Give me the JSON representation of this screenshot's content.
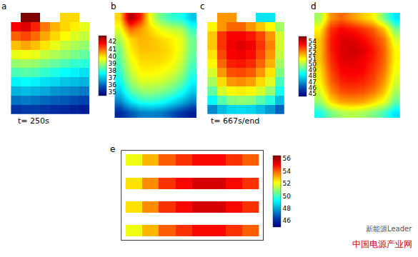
{
  "chart_data": [
    {
      "type": "heatmap",
      "label": "a",
      "annotation": "t= 250s",
      "tick_labels": false,
      "zlim": [
        34.5,
        42.8
      ],
      "zticks": [
        35,
        36,
        37,
        38,
        39,
        40,
        41,
        42
      ],
      "z": [
        [
          null,
          43,
          43,
          null,
          null,
          40,
          40,
          null
        ],
        [
          41.8,
          42,
          41.5,
          40.8,
          40.3,
          40,
          39.8,
          39.5
        ],
        [
          41,
          41.2,
          40.9,
          40.4,
          40,
          39.7,
          39.4,
          39.2
        ],
        [
          40.2,
          40.4,
          40.2,
          39.9,
          39.5,
          39.2,
          39,
          38.8
        ],
        [
          39.5,
          39.6,
          39.5,
          39.2,
          39,
          38.8,
          38.6,
          38.4
        ],
        [
          38.8,
          38.9,
          38.8,
          38.6,
          38.4,
          38.2,
          38,
          37.9
        ],
        [
          38.2,
          38.3,
          38.2,
          38,
          37.8,
          37.6,
          37.5,
          37.3
        ],
        [
          37.5,
          37.6,
          37.5,
          37.3,
          37.2,
          37,
          36.9,
          36.8
        ],
        [
          36.8,
          36.9,
          36.8,
          36.7,
          36.5,
          36.4,
          36.3,
          36.2
        ],
        [
          36.1,
          36.2,
          36.1,
          36,
          35.9,
          35.8,
          35.7,
          35.6
        ],
        [
          35.4,
          35.5,
          35.5,
          35.4,
          35.3,
          35.2,
          35.1,
          35
        ]
      ]
    },
    {
      "type": "heatmap",
      "label": "b",
      "tick_labels": false,
      "zlim": [
        34.5,
        42.8
      ],
      "z": [
        [
          40,
          42.5,
          41.5,
          39.5,
          38.5,
          38,
          37.8,
          37
        ],
        [
          39.5,
          41,
          40.5,
          40,
          39.5,
          39.2,
          39,
          38
        ],
        [
          39,
          40,
          40.3,
          40.2,
          40,
          39.8,
          39.5,
          38.5
        ],
        [
          38.5,
          39.8,
          40.2,
          40.2,
          40.1,
          39.9,
          39.5,
          38.5
        ],
        [
          38.3,
          39.5,
          40,
          40,
          40,
          39.8,
          39.3,
          38.3
        ],
        [
          38,
          39.2,
          39.8,
          39.8,
          39.7,
          39.5,
          39,
          38
        ],
        [
          37.6,
          38.8,
          39.4,
          39.4,
          39.3,
          39,
          38.5,
          37.6
        ],
        [
          37,
          38.2,
          38.7,
          38.8,
          38.6,
          38.3,
          37.8,
          37
        ],
        [
          36.2,
          37.2,
          37.8,
          37.9,
          37.7,
          37.3,
          36.8,
          36.2
        ],
        [
          35.2,
          35.8,
          36.2,
          36.3,
          36.2,
          35.8,
          35.4,
          35
        ]
      ]
    },
    {
      "type": "heatmap",
      "label": "c",
      "annotation": "t= 667s/end",
      "tick_labels": false,
      "zlim": [
        44.5,
        54.8
      ],
      "zticks": [
        45,
        46,
        47,
        48,
        49,
        50,
        51,
        52,
        53,
        54
      ],
      "z": [
        [
          null,
          52,
          52,
          null,
          null,
          48,
          48,
          null
        ],
        [
          51,
          52,
          52.5,
          52.5,
          52,
          51.5,
          51,
          50
        ],
        [
          51.5,
          53,
          53.5,
          53.5,
          53.3,
          52.8,
          52,
          50.5
        ],
        [
          51.5,
          53,
          53.6,
          53.8,
          53.6,
          53,
          52.2,
          50.5
        ],
        [
          51.2,
          52.8,
          53.5,
          53.6,
          53.4,
          52.8,
          52,
          50.3
        ],
        [
          51,
          52.5,
          53.2,
          53.3,
          53.1,
          52.5,
          51.7,
          50
        ],
        [
          50.5,
          52,
          52.7,
          52.8,
          52.6,
          52,
          51.2,
          49.6
        ],
        [
          50,
          51.3,
          52,
          52.1,
          51.9,
          51.3,
          50.6,
          49
        ],
        [
          49.3,
          50.5,
          51,
          51.1,
          51,
          50.5,
          49.8,
          48.5
        ],
        [
          48.3,
          49.2,
          49.7,
          49.8,
          49.7,
          49.2,
          48.7,
          47.5
        ],
        [
          46.8,
          47.5,
          47.8,
          47.9,
          47.8,
          47.5,
          47,
          46.3
        ]
      ]
    },
    {
      "type": "heatmap",
      "label": "d",
      "tick_labels": false,
      "zlim": [
        44.5,
        54.8
      ],
      "z": [
        [
          50,
          52,
          52.5,
          52,
          51.5,
          51,
          49.5,
          48
        ],
        [
          51,
          53,
          53.5,
          53.3,
          53,
          52.5,
          51.5,
          49.5
        ],
        [
          51.5,
          53.2,
          53.8,
          53.8,
          53.5,
          53,
          52.3,
          50.5
        ],
        [
          51.5,
          53.2,
          53.8,
          54,
          53.8,
          53.3,
          52.5,
          51
        ],
        [
          51.5,
          53,
          53.7,
          53.8,
          53.6,
          53.2,
          52.5,
          51
        ],
        [
          51.2,
          52.8,
          53.5,
          53.6,
          53.5,
          53,
          52.3,
          50.8
        ],
        [
          51,
          52.5,
          53.2,
          53.3,
          53.2,
          52.8,
          52,
          50.5
        ],
        [
          50.5,
          52,
          52.7,
          52.8,
          52.7,
          52.3,
          51.5,
          50
        ],
        [
          49.8,
          51.2,
          51.8,
          51.9,
          51.8,
          51.3,
          50.7,
          49.3
        ],
        [
          48.5,
          49.5,
          50,
          50.2,
          50,
          49.6,
          49,
          48
        ]
      ]
    },
    {
      "type": "heatmap",
      "label": "e",
      "tick_labels": false,
      "zlim": [
        45,
        56.5
      ],
      "zticks": [
        46,
        48,
        50,
        52,
        54,
        56
      ],
      "z": [
        [
          52,
          53,
          54,
          54.5,
          55,
          55,
          54.5,
          54
        ],
        [
          null,
          null,
          null,
          null,
          null,
          null,
          null,
          null
        ],
        [
          52.5,
          53.5,
          54.5,
          55,
          55.5,
          55.5,
          55,
          54.5
        ],
        [
          null,
          null,
          null,
          null,
          null,
          null,
          null,
          null
        ],
        [
          52.5,
          53.5,
          54.5,
          55,
          55.5,
          55.5,
          55,
          54.5
        ],
        [
          null,
          null,
          null,
          null,
          null,
          null,
          null,
          null
        ],
        [
          52,
          53,
          54,
          54.5,
          55,
          55,
          54.5,
          54
        ]
      ]
    }
  ],
  "watermark": [
    "新能源Leader",
    "中国电源产业网"
  ]
}
